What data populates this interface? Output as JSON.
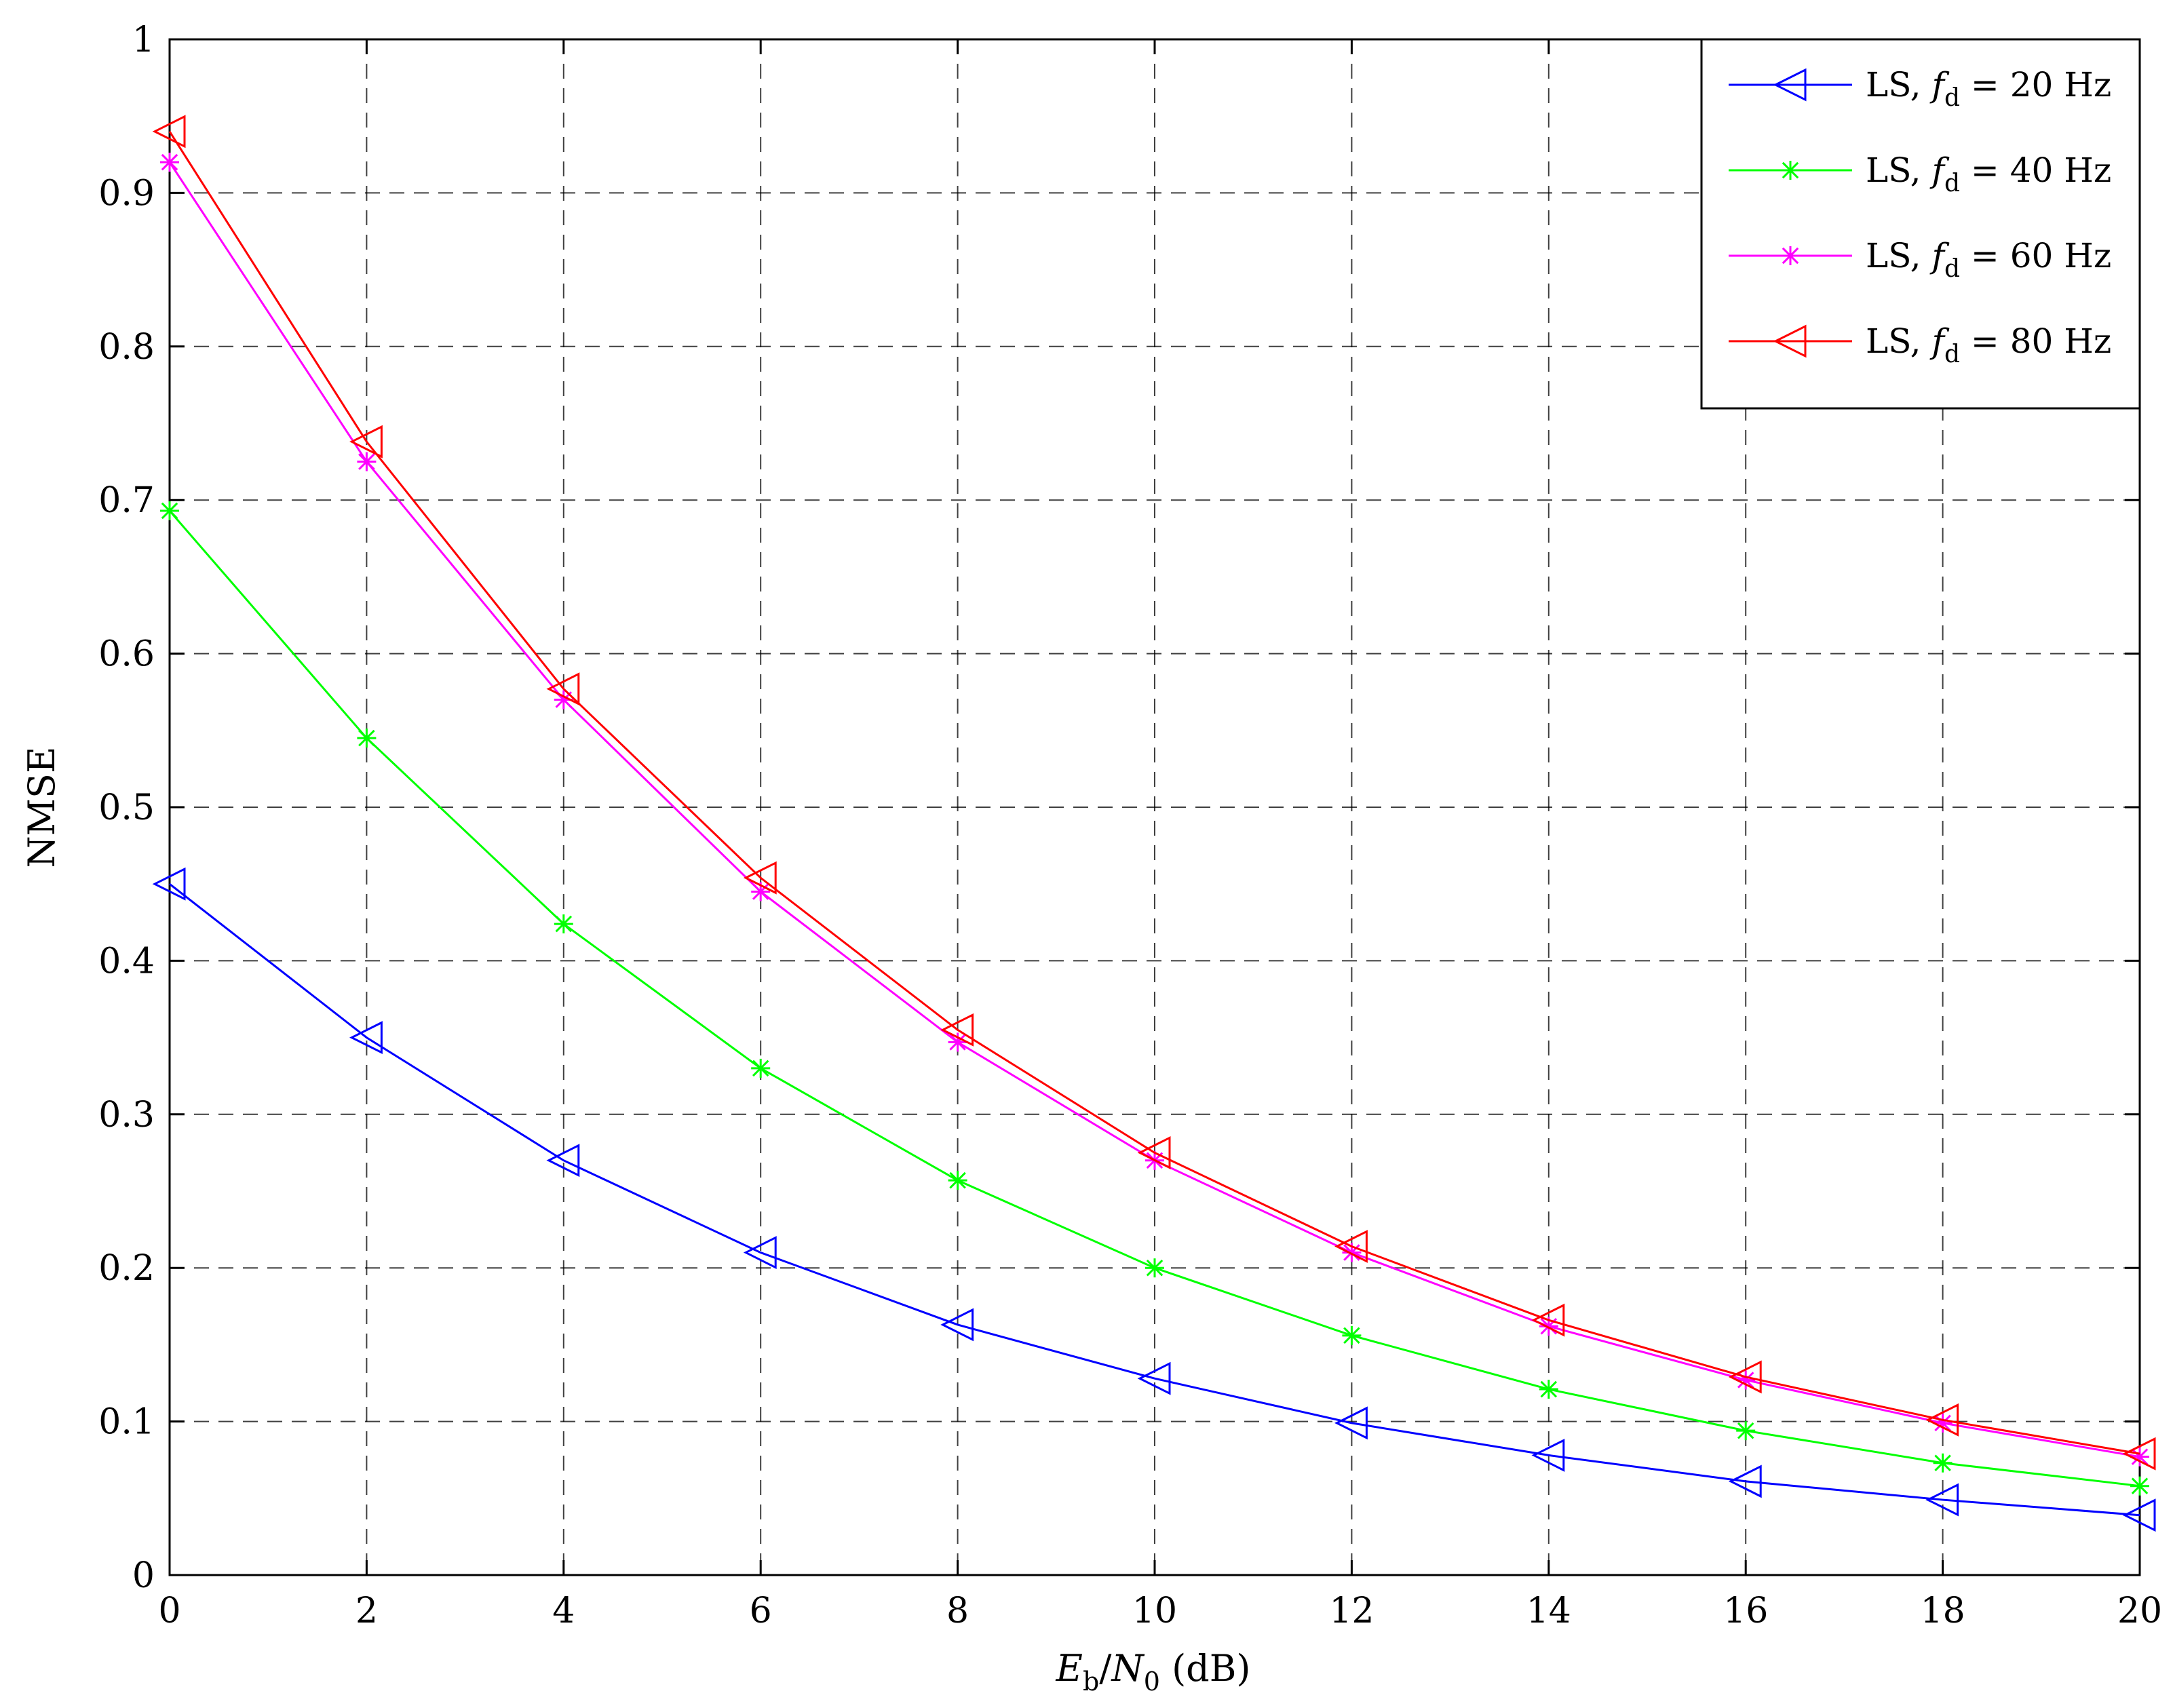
{
  "chart_data": {
    "type": "line",
    "xlabel": {
      "E": "E",
      "b": "b",
      "slash": "/",
      "N": "N",
      "zero": "0",
      "unit": " (dB)"
    },
    "ylabel": "NMSE",
    "xlim": [
      0,
      20
    ],
    "ylim": [
      0,
      1
    ],
    "x_ticks": [
      0,
      2,
      4,
      6,
      8,
      10,
      12,
      14,
      16,
      18,
      20
    ],
    "y_ticks": [
      0,
      0.1,
      0.2,
      0.3,
      0.4,
      0.5,
      0.6,
      0.7,
      0.8,
      0.9,
      1
    ],
    "grid": true,
    "legend_position": "top-right",
    "x": [
      0,
      2,
      4,
      6,
      8,
      10,
      12,
      14,
      16,
      18,
      20
    ],
    "series": [
      {
        "name": {
          "prefix": "LS, ",
          "f": "f",
          "d": "d",
          "suffix": " = 20 Hz"
        },
        "color": "#0000ff",
        "marker": "triangle-left",
        "values": [
          0.45,
          0.35,
          0.27,
          0.21,
          0.163,
          0.128,
          0.099,
          0.078,
          0.061,
          0.049,
          0.039
        ]
      },
      {
        "name": {
          "prefix": "LS, ",
          "f": "f",
          "d": "d",
          "suffix": " = 40 Hz"
        },
        "color": "#00ff00",
        "marker": "asterisk",
        "values": [
          0.693,
          0.545,
          0.424,
          0.33,
          0.257,
          0.2,
          0.156,
          0.121,
          0.094,
          0.073,
          0.058
        ]
      },
      {
        "name": {
          "prefix": "LS, ",
          "f": "f",
          "d": "d",
          "suffix": " = 60 Hz"
        },
        "color": "#ff00ff",
        "marker": "asterisk",
        "values": [
          0.92,
          0.725,
          0.57,
          0.445,
          0.347,
          0.27,
          0.21,
          0.162,
          0.127,
          0.099,
          0.077
        ]
      },
      {
        "name": {
          "prefix": "LS, ",
          "f": "f",
          "d": "d",
          "suffix": " = 80 Hz"
        },
        "color": "#ff0000",
        "marker": "triangle-left",
        "values": [
          0.94,
          0.738,
          0.577,
          0.454,
          0.355,
          0.275,
          0.214,
          0.166,
          0.129,
          0.101,
          0.079
        ]
      }
    ]
  }
}
